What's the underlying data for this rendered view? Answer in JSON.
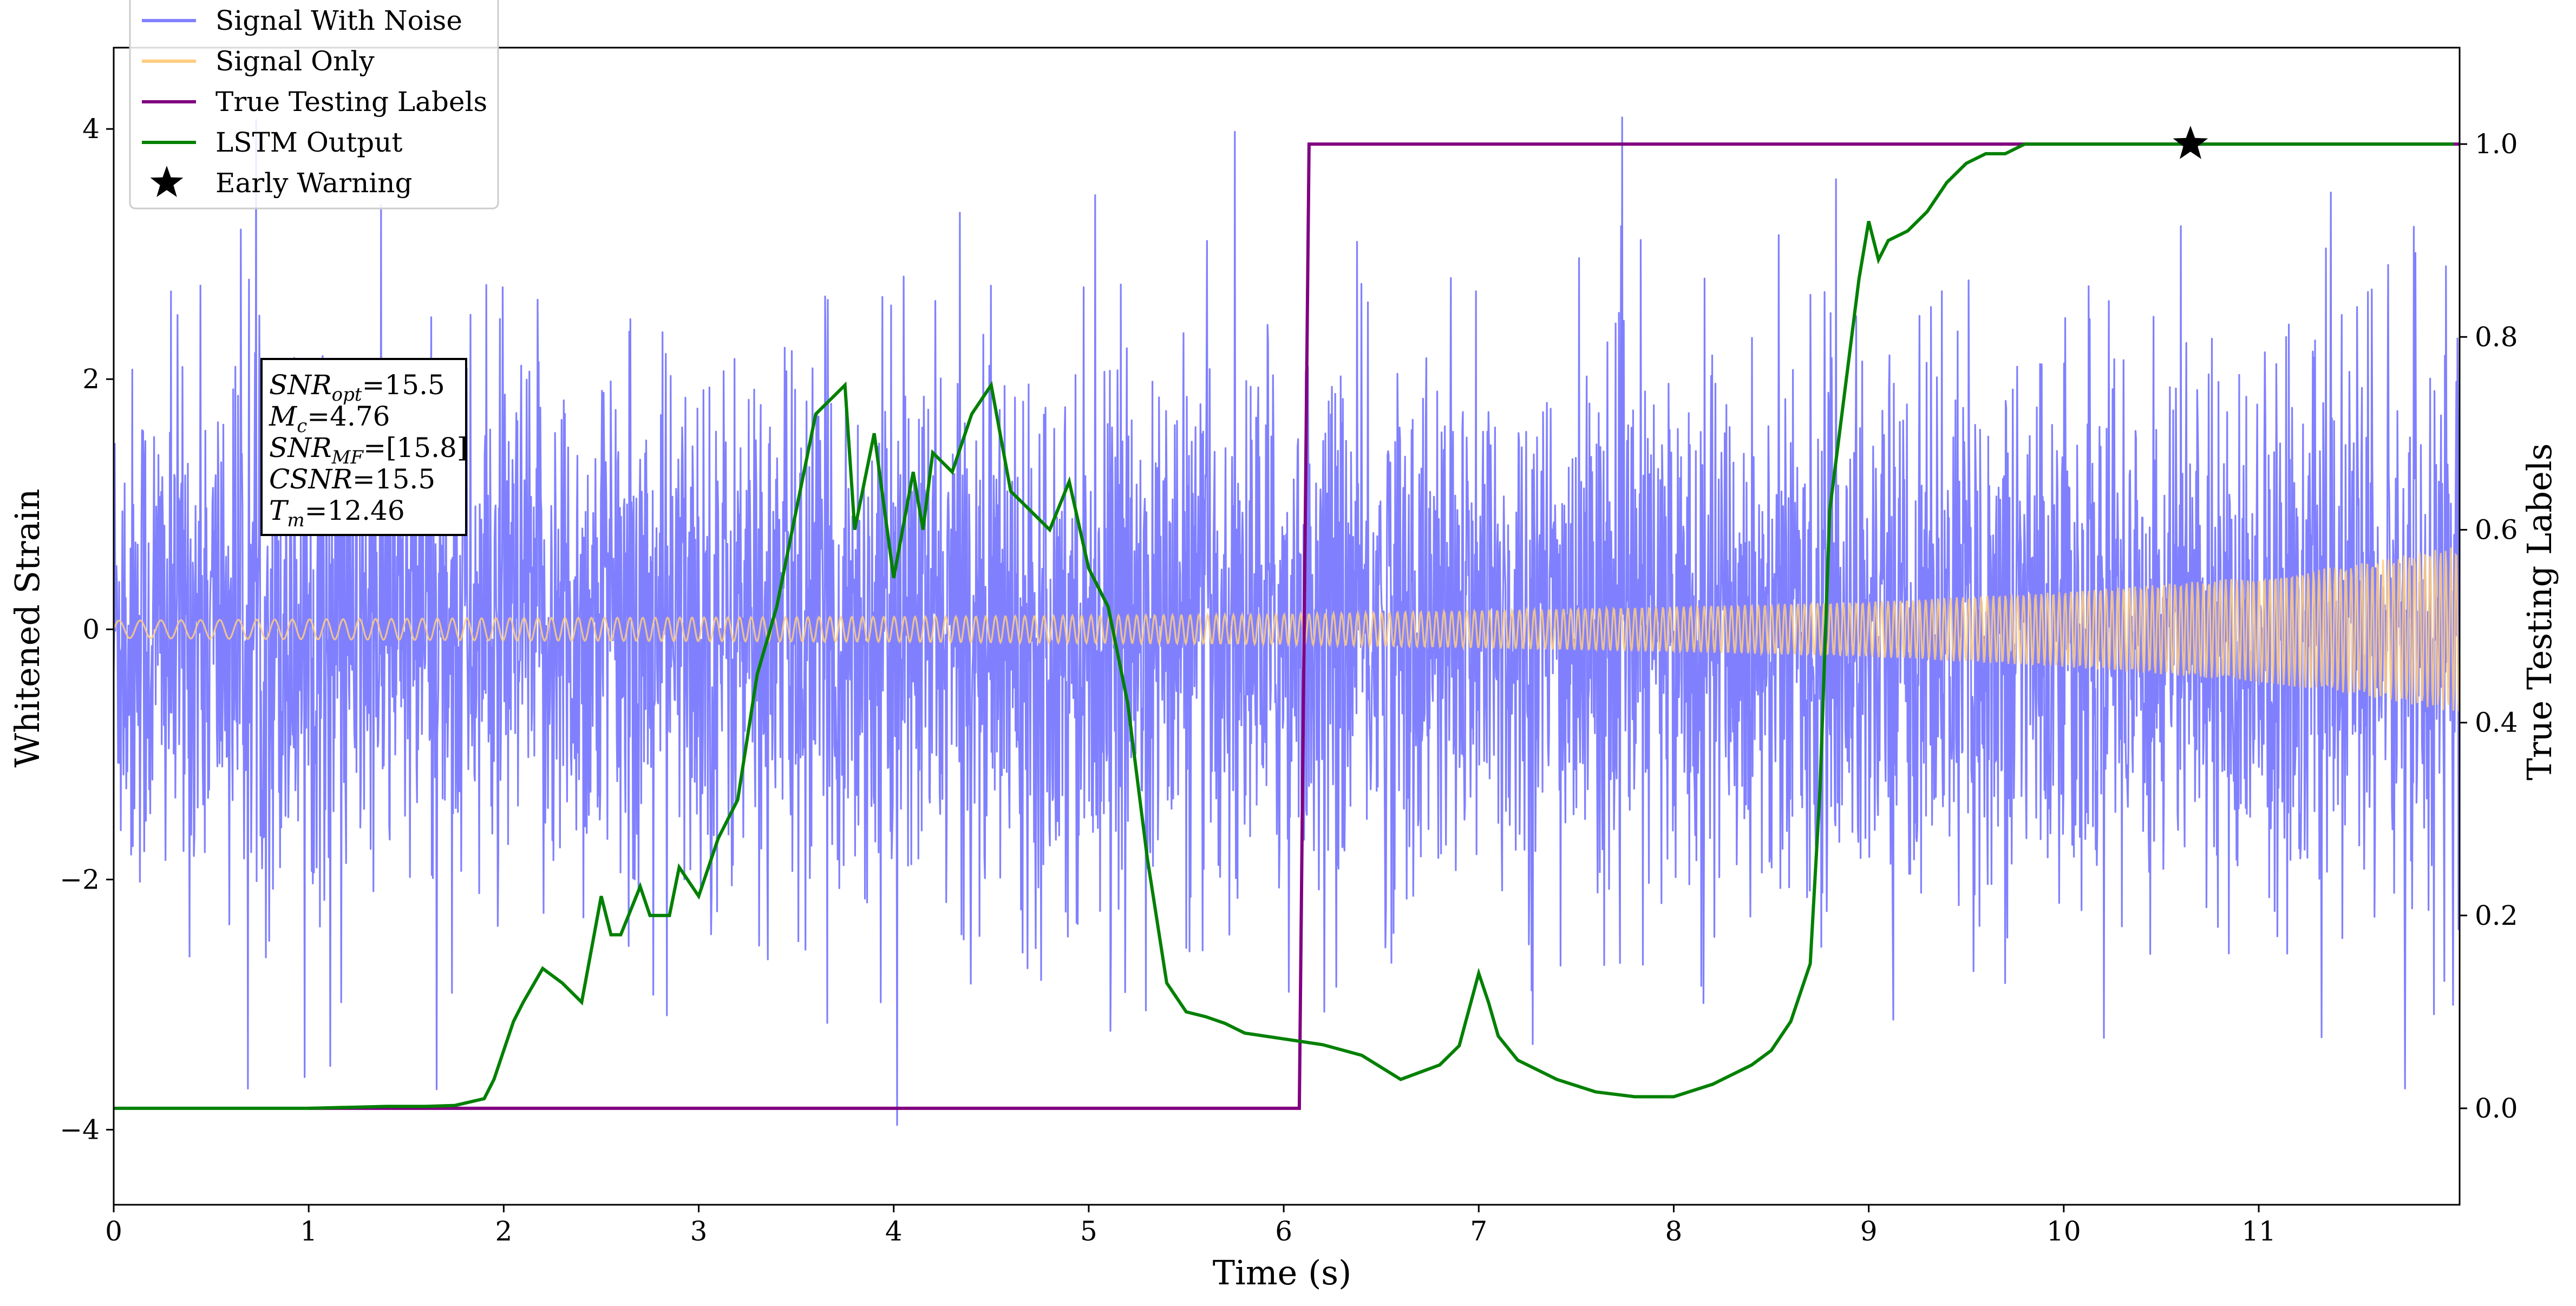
{
  "chart_data": {
    "type": "line",
    "xlabel": "Time (s)",
    "ylabel": "Whitened Strain",
    "y2label": "True Testing Labels",
    "xlim": [
      0,
      12.03
    ],
    "ylim": [
      -4.6,
      4.65
    ],
    "y2lim": [
      -0.1,
      1.1
    ],
    "x_ticks": [
      "0",
      "1",
      "2",
      "3",
      "4",
      "5",
      "6",
      "7",
      "8",
      "9",
      "10",
      "11"
    ],
    "y_ticks": [
      "−4",
      "−2",
      "0",
      "2",
      "4"
    ],
    "y2_ticks": [
      "0.0",
      "0.2",
      "0.4",
      "0.6",
      "0.8",
      "1.0"
    ],
    "grid": false,
    "legend_position": "top-left",
    "legend": [
      {
        "label": "Signal With Noise",
        "color": "#8080ff",
        "marker": "line"
      },
      {
        "label": "Signal Only",
        "color": "#ffcc80",
        "marker": "line"
      },
      {
        "label": "True Testing Labels",
        "color": "#800080",
        "marker": "line"
      },
      {
        "label": "LSTM Output",
        "color": "#008000",
        "marker": "line"
      },
      {
        "label": "Early Warning",
        "color": "#000000",
        "marker": "star"
      }
    ],
    "params_box": [
      {
        "main": "SNR",
        "sub": "opt",
        "rest": "=15.5"
      },
      {
        "main": "M",
        "sub": "c",
        "rest": "=4.76"
      },
      {
        "main": "SNR",
        "sub": "MF",
        "rest": "=[15.8]"
      },
      {
        "main": "CSNR",
        "sub": "",
        "rest": "=15.5"
      },
      {
        "main": "T",
        "sub": "m",
        "rest": "=12.46"
      }
    ],
    "series": [
      {
        "name": "Signal With Noise",
        "axis": "left",
        "color": "#8080ff",
        "description_envelope": {
          "core_sigma": 1.0,
          "spike_max": 4.2,
          "spike_min": -4.2
        }
      },
      {
        "name": "Signal Only",
        "axis": "left",
        "color": "#ffcc80",
        "amplitude_envelope": [
          [
            0,
            0.07
          ],
          [
            2,
            0.09
          ],
          [
            4,
            0.1
          ],
          [
            6,
            0.12
          ],
          [
            8,
            0.18
          ],
          [
            9,
            0.22
          ],
          [
            10,
            0.3
          ],
          [
            11,
            0.42
          ],
          [
            11.5,
            0.52
          ],
          [
            12.03,
            0.67
          ]
        ]
      },
      {
        "name": "True Testing Labels",
        "axis": "right",
        "color": "#800080",
        "x": [
          1.0,
          6.08,
          6.13,
          12.03
        ],
        "y": [
          0.0,
          0.0,
          1.0,
          1.0
        ]
      },
      {
        "name": "LSTM Output",
        "axis": "right",
        "color": "#008000",
        "x": [
          0,
          0.3,
          0.6,
          1.0,
          1.4,
          1.6,
          1.75,
          1.9,
          1.95,
          2.05,
          2.1,
          2.2,
          2.3,
          2.4,
          2.5,
          2.55,
          2.6,
          2.7,
          2.75,
          2.85,
          2.9,
          3.0,
          3.1,
          3.2,
          3.3,
          3.4,
          3.5,
          3.6,
          3.7,
          3.75,
          3.8,
          3.9,
          4.0,
          4.1,
          4.15,
          4.2,
          4.3,
          4.4,
          4.5,
          4.6,
          4.7,
          4.8,
          4.9,
          5.0,
          5.1,
          5.2,
          5.3,
          5.4,
          5.5,
          5.6,
          5.7,
          5.8,
          6.0,
          6.2,
          6.4,
          6.6,
          6.8,
          6.9,
          7.0,
          7.05,
          7.1,
          7.2,
          7.4,
          7.6,
          7.8,
          7.9,
          8.0,
          8.2,
          8.4,
          8.5,
          8.6,
          8.7,
          8.75,
          8.8,
          8.9,
          8.95,
          9.0,
          9.05,
          9.1,
          9.2,
          9.3,
          9.4,
          9.5,
          9.6,
          9.7,
          9.8,
          9.9,
          10.0,
          10.2,
          10.4,
          10.6,
          10.8,
          11.0,
          11.2,
          11.4,
          11.6,
          11.8,
          12.0
        ],
        "y": [
          0.0,
          0.0,
          0.0,
          0.0,
          0.002,
          0.002,
          0.003,
          0.01,
          0.03,
          0.09,
          0.11,
          0.145,
          0.13,
          0.11,
          0.22,
          0.18,
          0.18,
          0.23,
          0.2,
          0.2,
          0.25,
          0.22,
          0.28,
          0.32,
          0.45,
          0.52,
          0.62,
          0.72,
          0.74,
          0.75,
          0.6,
          0.7,
          0.55,
          0.66,
          0.6,
          0.68,
          0.66,
          0.72,
          0.75,
          0.64,
          0.62,
          0.6,
          0.65,
          0.56,
          0.52,
          0.42,
          0.26,
          0.13,
          0.1,
          0.095,
          0.088,
          0.078,
          0.072,
          0.066,
          0.055,
          0.03,
          0.045,
          0.065,
          0.14,
          0.11,
          0.075,
          0.05,
          0.03,
          0.017,
          0.012,
          0.012,
          0.012,
          0.025,
          0.045,
          0.06,
          0.09,
          0.15,
          0.33,
          0.62,
          0.78,
          0.86,
          0.92,
          0.88,
          0.9,
          0.91,
          0.93,
          0.96,
          0.98,
          0.99,
          0.99,
          1.0,
          1.0,
          1.0,
          1.0,
          1.0,
          1.0,
          1.0,
          1.0,
          1.0,
          1.0,
          1.0,
          1.0,
          1.0
        ]
      }
    ],
    "annotations": [
      {
        "type": "star",
        "label": "Early Warning",
        "x": 10.65,
        "y2": 1.0,
        "color": "#000000"
      }
    ]
  }
}
